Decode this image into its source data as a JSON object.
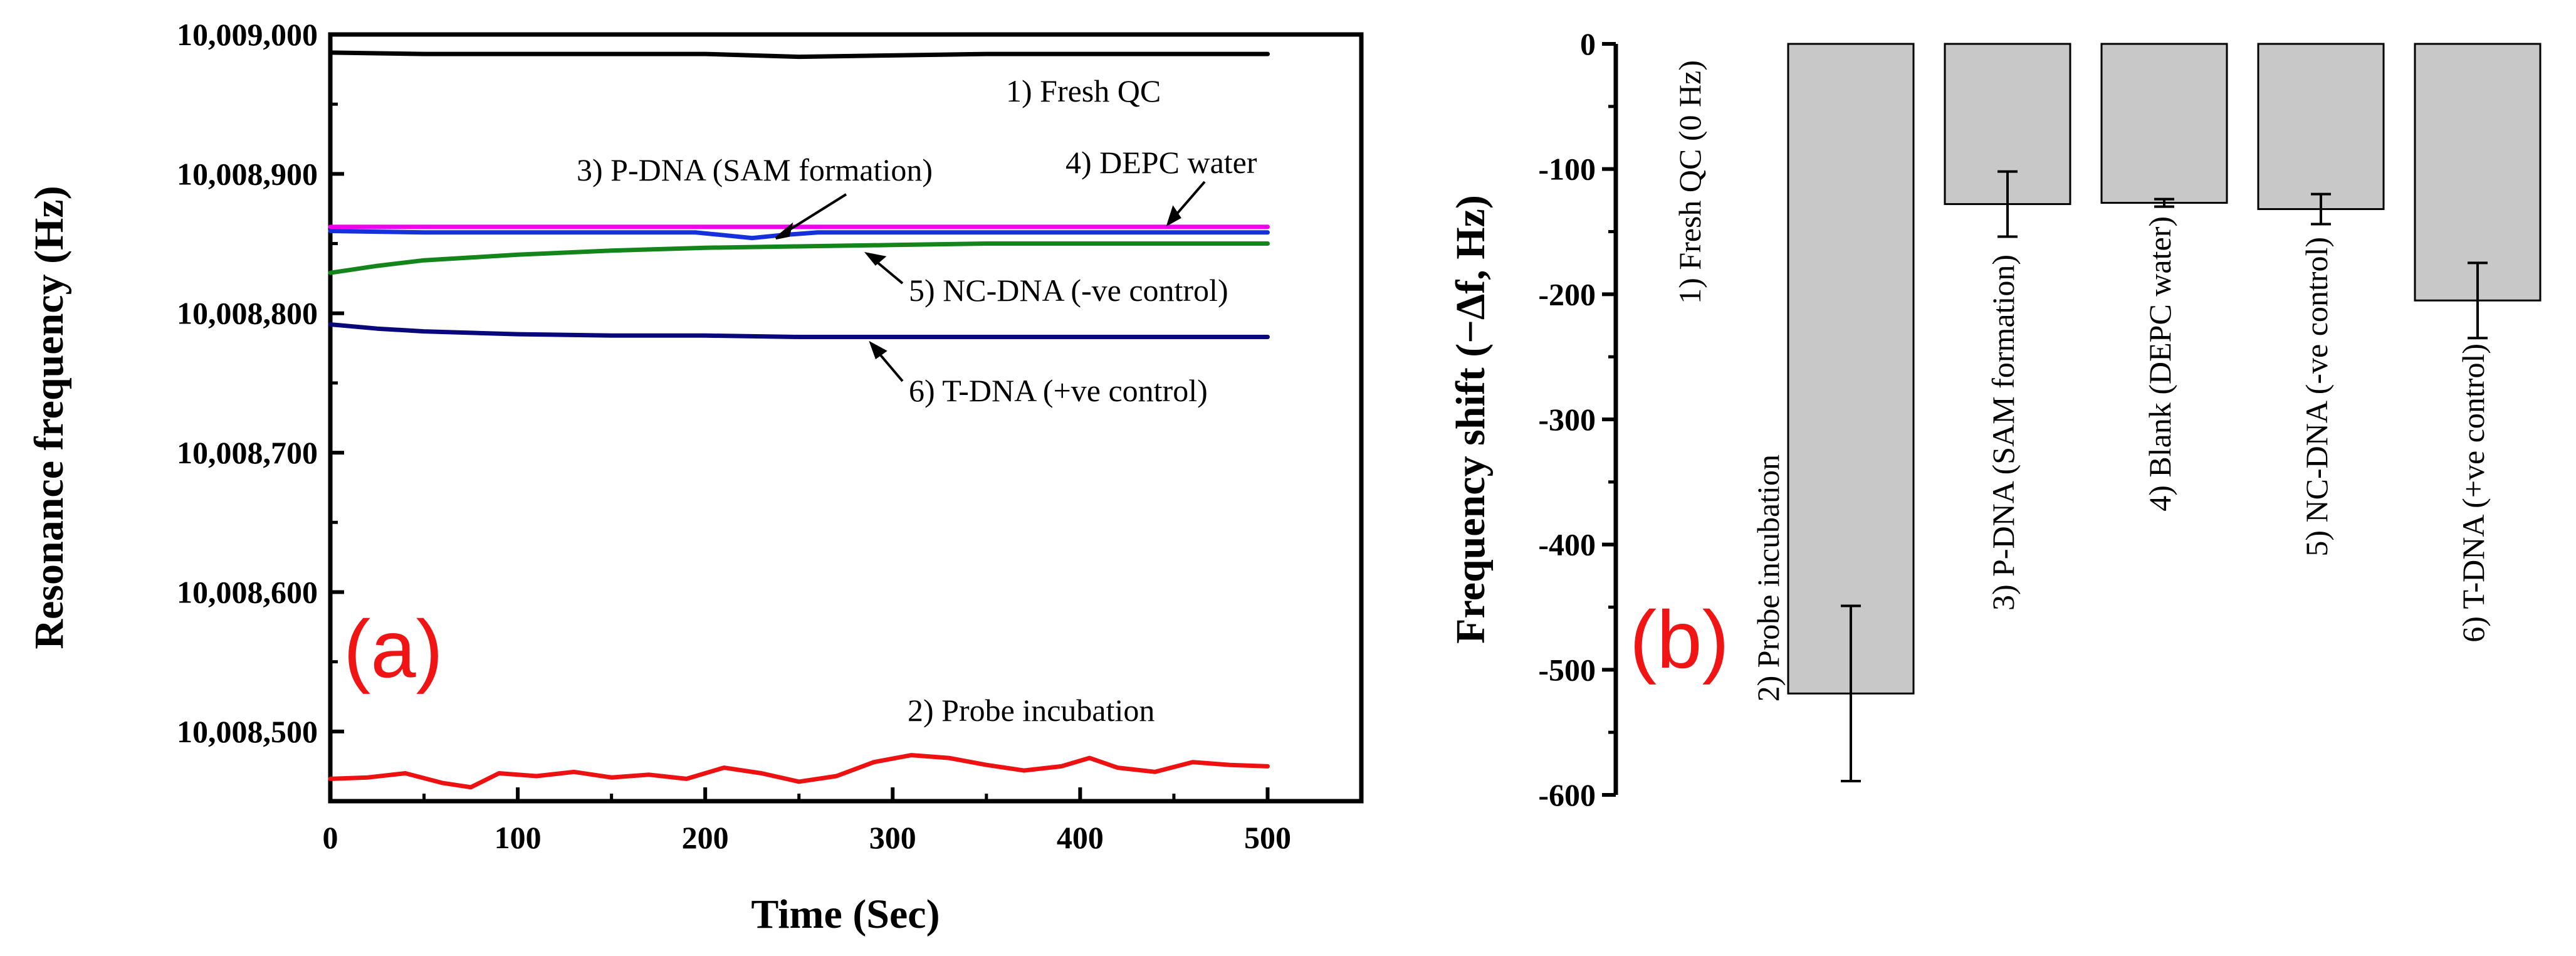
{
  "chart_data": [
    {
      "type": "line",
      "panel_label": "(a)",
      "xlabel": "Time (Sec)",
      "ylabel": "Resonance frequency (Hz)",
      "xlim": [
        0,
        550
      ],
      "ylim": [
        10008450,
        10009000
      ],
      "xticks": [
        0,
        100,
        200,
        300,
        400,
        500
      ],
      "xtick_labels": [
        "0",
        "100",
        "200",
        "300",
        "400",
        "500"
      ],
      "yticks": [
        10008500,
        10008600,
        10008700,
        10008800,
        10008900,
        10009000
      ],
      "ytick_labels": [
        "10,008,500",
        "10,008,600",
        "10,008,700",
        "10,008,800",
        "10,008,900",
        "10,009,000"
      ],
      "grid": false,
      "series": [
        {
          "name": "1) Fresh QC",
          "color": "#000000",
          "x": [
            0,
            50,
            100,
            150,
            200,
            250,
            300,
            350,
            400,
            450,
            500
          ],
          "y": [
            10008987,
            10008986,
            10008986,
            10008986,
            10008986,
            10008984,
            10008985,
            10008986,
            10008986,
            10008986,
            10008986
          ]
        },
        {
          "name": "2) Probe incubation",
          "color": "#ee1111",
          "x": [
            0,
            20,
            40,
            60,
            75,
            90,
            110,
            130,
            150,
            170,
            190,
            210,
            230,
            250,
            270,
            290,
            310,
            330,
            350,
            370,
            390,
            405,
            420,
            440,
            460,
            480,
            500
          ],
          "y": [
            10008466,
            10008467,
            10008470,
            10008463,
            10008460,
            10008470,
            10008468,
            10008471,
            10008467,
            10008469,
            10008466,
            10008474,
            10008470,
            10008464,
            10008468,
            10008478,
            10008483,
            10008481,
            10008476,
            10008472,
            10008475,
            10008481,
            10008474,
            10008471,
            10008478,
            10008476,
            10008475
          ]
        },
        {
          "name": "3) P-DNA (SAM formation)",
          "color": "#1530dd",
          "x": [
            0,
            50,
            100,
            150,
            195,
            210,
            225,
            240,
            260,
            300,
            350,
            400,
            450,
            500
          ],
          "y": [
            10008859,
            10008858,
            10008858,
            10008858,
            10008858,
            10008856,
            10008854,
            10008856,
            10008858,
            10008858,
            10008858,
            10008858,
            10008858,
            10008858
          ]
        },
        {
          "name": "4) DEPC water",
          "color": "#ee00ee",
          "x": [
            0,
            100,
            200,
            300,
            400,
            500
          ],
          "y": [
            10008862,
            10008862,
            10008862,
            10008862,
            10008862,
            10008862
          ]
        },
        {
          "name": "5) NC-DNA (-ve control)",
          "color": "#13851b",
          "x": [
            0,
            10,
            25,
            50,
            75,
            100,
            150,
            200,
            250,
            300,
            350,
            400,
            450,
            500
          ],
          "y": [
            10008829,
            10008831,
            10008834,
            10008838,
            10008840,
            10008842,
            10008845,
            10008847,
            10008848,
            10008849,
            10008850,
            10008850,
            10008850,
            10008850
          ]
        },
        {
          "name": "6) T-DNA (+ve control)",
          "color": "#08087a",
          "x": [
            0,
            25,
            50,
            75,
            100,
            150,
            200,
            250,
            300,
            350,
            400,
            450,
            500
          ],
          "y": [
            10008792,
            10008789,
            10008787,
            10008786,
            10008785,
            10008784,
            10008784,
            10008783,
            10008783,
            10008783,
            10008783,
            10008783,
            10008783
          ]
        }
      ],
      "annotations": [
        {
          "text": "1) Fresh QC"
        },
        {
          "text": "3) P-DNA (SAM formation)"
        },
        {
          "text": "4) DEPC water"
        },
        {
          "text": "5) NC-DNA (-ve control)"
        },
        {
          "text": "6) T-DNA (+ve control)"
        },
        {
          "text": "2) Probe incubation"
        }
      ]
    },
    {
      "type": "bar",
      "panel_label": "(b)",
      "xlabel": "",
      "ylabel": "Frequency shift (−Δf, Hz)",
      "ylim": [
        -600,
        0
      ],
      "yticks": [
        0,
        -100,
        -200,
        -300,
        -400,
        -500,
        -600
      ],
      "ytick_labels": [
        "0",
        "-100",
        "-200",
        "-300",
        "-400",
        "-500",
        "-600"
      ],
      "grid": false,
      "bar_color": "#c8c8c8",
      "categories": [
        "1) Fresh QC (0 Hz)",
        "2) Probe incubation",
        "3) P-DNA (SAM formation)",
        "4) Blank (DEPC water)",
        "5) NC-DNA (-ve control)",
        "6) T-DNA (+ve control)"
      ],
      "values": [
        0,
        -519,
        -128,
        -127,
        -132,
        -205
      ],
      "errors": [
        0,
        70,
        26,
        3,
        12,
        30
      ]
    }
  ]
}
